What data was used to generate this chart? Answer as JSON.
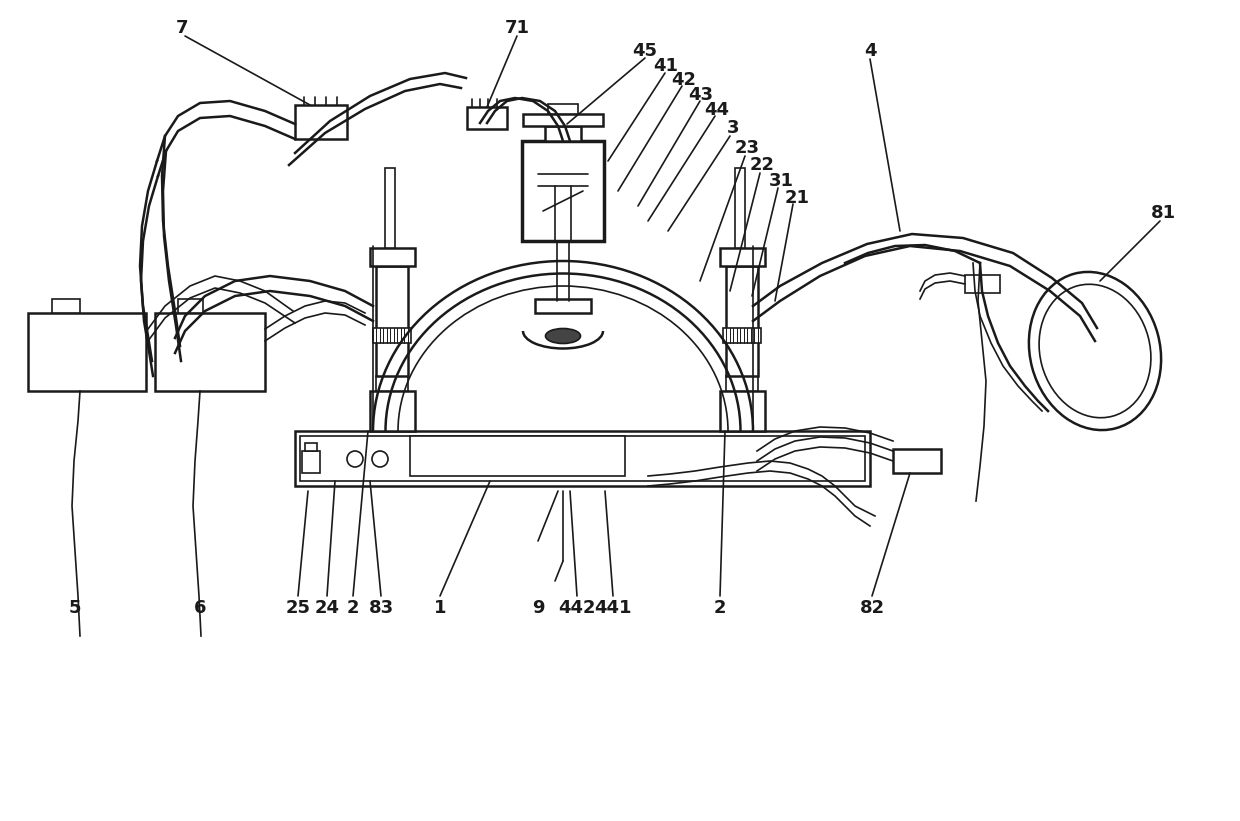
{
  "bg_color": "#ffffff",
  "line_color": "#1a1a1a",
  "lw_thin": 1.2,
  "lw_med": 1.8,
  "lw_thick": 2.5,
  "label_fs": 13
}
